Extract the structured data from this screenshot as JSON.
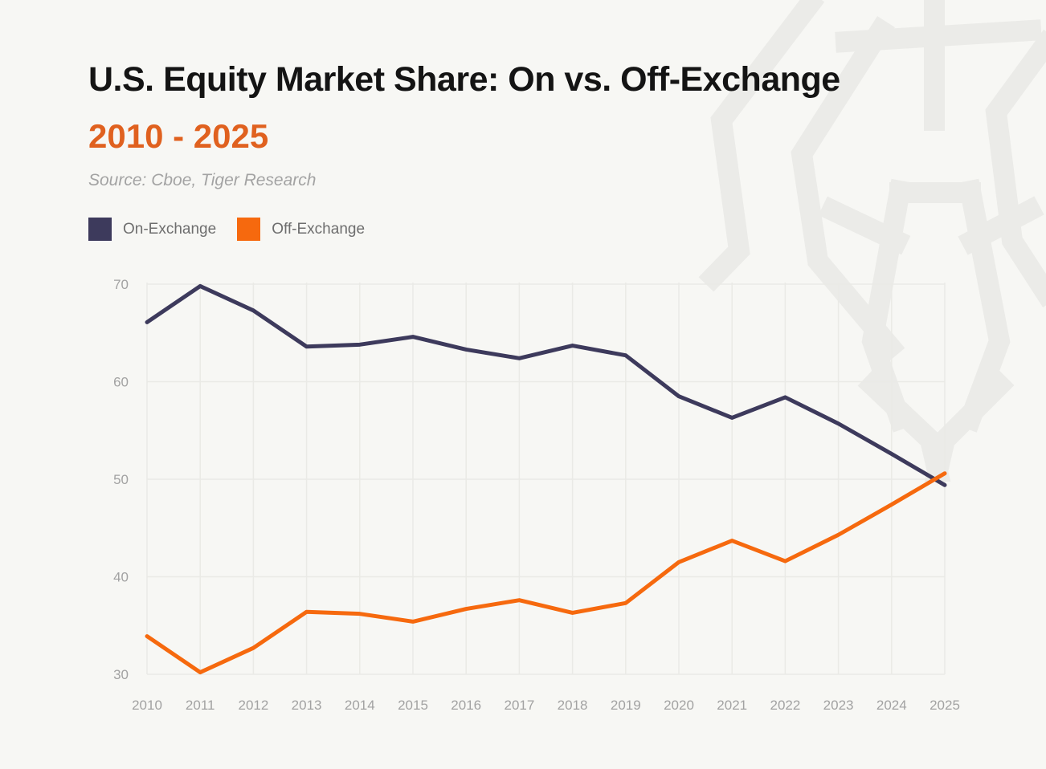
{
  "header": {
    "title": "U.S. Equity Market Share: On vs. Off-Exchange",
    "subtitle": "2010 - 2025",
    "source": "Source: Cboe, Tiger Research"
  },
  "legend": {
    "items": [
      {
        "label": "On-Exchange",
        "color": "#3d3a5c"
      },
      {
        "label": "Off-Exchange",
        "color": "#f6690e"
      }
    ]
  },
  "colors": {
    "background": "#f7f7f4",
    "title_text": "#141414",
    "subtitle_accent": "#e0611f",
    "source_text": "#a3a3a3",
    "axis_label": "#a2a2a2",
    "gridline": "#eaeae6",
    "on_exchange": "#3d3a5c",
    "off_exchange": "#f6690e",
    "watermark": "#ebebe8"
  },
  "chart_data": {
    "type": "line",
    "title": "U.S. Equity Market Share: On vs. Off-Exchange",
    "xlabel": "",
    "ylabel": "",
    "x": [
      2010,
      2011,
      2012,
      2013,
      2014,
      2015,
      2016,
      2017,
      2018,
      2019,
      2020,
      2021,
      2022,
      2023,
      2024,
      2025
    ],
    "series": [
      {
        "name": "On-Exchange",
        "color": "#3d3a5c",
        "values": [
          66.1,
          69.8,
          67.3,
          63.6,
          63.8,
          64.6,
          63.3,
          62.4,
          63.7,
          62.7,
          58.5,
          56.3,
          58.4,
          55.7,
          52.6,
          49.4
        ]
      },
      {
        "name": "Off-Exchange",
        "color": "#f6690e",
        "values": [
          33.9,
          30.2,
          32.7,
          36.4,
          36.2,
          35.4,
          36.7,
          37.6,
          36.3,
          37.3,
          41.5,
          43.7,
          41.6,
          44.3,
          47.4,
          50.6
        ]
      }
    ],
    "ylim": [
      30,
      70
    ],
    "yticks": [
      30,
      40,
      50,
      60,
      70
    ],
    "grid": true,
    "legend_position": "top-left"
  }
}
